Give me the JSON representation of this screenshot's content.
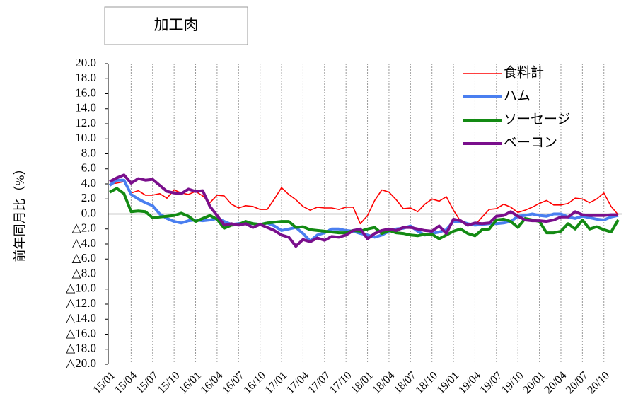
{
  "chart_data": {
    "type": "line",
    "title": "加工肉",
    "y_label": "前年同月比（%）",
    "categories": [
      "15/01",
      null,
      null,
      "15/04",
      null,
      null,
      "15/07",
      null,
      null,
      "15/10",
      null,
      null,
      "16/01",
      null,
      null,
      "16/04",
      null,
      null,
      "16/07",
      null,
      null,
      "16/10",
      null,
      null,
      "17/01",
      null,
      null,
      "17/04",
      null,
      null,
      "17/07",
      null,
      null,
      "17/10",
      null,
      null,
      "18/01",
      null,
      null,
      "18/04",
      null,
      null,
      "18/07",
      null,
      null,
      "18/10",
      null,
      null,
      "19/01",
      null,
      null,
      "19/04",
      null,
      null,
      "19/07",
      null,
      null,
      "19/10",
      null,
      null,
      "20/01",
      null,
      null,
      "20/04",
      null,
      null,
      "20/07",
      null,
      null,
      "20/10",
      null,
      null
    ],
    "series": [
      {
        "name": "食料計",
        "color": "#ff0000",
        "line_width": 1.6,
        "values": [
          4.0,
          4.1,
          4.3,
          2.8,
          3.1,
          2.5,
          2.5,
          2.7,
          2.1,
          3.2,
          2.8,
          2.6,
          3.0,
          2.4,
          1.5,
          2.5,
          2.4,
          1.3,
          0.8,
          1.1,
          1.0,
          0.6,
          0.6,
          2.0,
          3.5,
          2.6,
          1.9,
          1.0,
          0.5,
          0.9,
          0.8,
          0.8,
          0.6,
          0.9,
          0.9,
          -1.3,
          -0.2,
          1.8,
          3.2,
          2.9,
          1.9,
          0.7,
          0.8,
          0.3,
          1.3,
          2.0,
          1.7,
          2.3,
          0.5,
          -1.0,
          -1.3,
          -1.5,
          -0.4,
          0.6,
          0.7,
          1.3,
          0.9,
          0.2,
          0.5,
          0.9,
          1.4,
          1.8,
          1.2,
          1.2,
          1.4,
          2.1,
          2.0,
          1.5,
          2.0,
          2.8,
          1.0,
          -0.1
        ]
      },
      {
        "name": "ハム",
        "color": "#4a7ff0",
        "line_width": 4,
        "values": [
          3.8,
          4.5,
          4.5,
          2.6,
          2.0,
          1.5,
          1.1,
          0.0,
          -0.6,
          -1.0,
          -1.2,
          -0.9,
          -0.8,
          -0.9,
          -0.8,
          -0.6,
          -1.0,
          -1.4,
          -1.3,
          -1.2,
          -1.3,
          -1.4,
          -1.2,
          -1.6,
          -2.2,
          -2.0,
          -1.8,
          -2.6,
          -3.6,
          -2.8,
          -2.5,
          -2.0,
          -2.0,
          -2.2,
          -2.3,
          -2.6,
          -2.8,
          -3.1,
          -2.8,
          -2.3,
          -2.0,
          -1.9,
          -1.6,
          -2.3,
          -2.8,
          -2.6,
          -2.4,
          -2.1,
          -1.0,
          -1.0,
          -1.3,
          -1.5,
          -1.4,
          -1.3,
          -1.3,
          -1.2,
          -1.0,
          -0.3,
          -0.2,
          0.0,
          -0.2,
          -0.3,
          0.0,
          0.0,
          -0.4,
          -0.6,
          -0.3,
          -0.5,
          -0.7,
          -0.8,
          -0.4,
          -0.2
        ]
      },
      {
        "name": "ソーセージ",
        "color": "#138a13",
        "line_width": 4,
        "values": [
          2.9,
          3.4,
          2.7,
          0.3,
          0.4,
          0.3,
          -0.5,
          -0.4,
          -0.3,
          -0.2,
          0.1,
          -0.3,
          -1.0,
          -0.6,
          -0.2,
          -0.7,
          -1.9,
          -1.5,
          -1.4,
          -1.0,
          -1.3,
          -1.4,
          -1.2,
          -1.1,
          -1.0,
          -1.0,
          -1.8,
          -1.7,
          -2.1,
          -2.2,
          -2.3,
          -2.4,
          -2.5,
          -2.5,
          -2.2,
          -2.3,
          -2.0,
          -1.8,
          -2.6,
          -2.2,
          -2.5,
          -2.6,
          -2.8,
          -2.9,
          -2.7,
          -2.7,
          -3.3,
          -2.8,
          -2.3,
          -2.0,
          -2.6,
          -2.9,
          -2.1,
          -2.0,
          -0.8,
          -0.7,
          -1.0,
          -1.8,
          -0.6,
          -0.8,
          -1.0,
          -2.5,
          -2.5,
          -2.3,
          -1.3,
          -2.0,
          -0.8,
          -2.0,
          -1.7,
          -2.1,
          -2.4,
          -0.8
        ]
      },
      {
        "name": "ベーコン",
        "color": "#7a0f8c",
        "line_width": 4,
        "values": [
          4.3,
          4.8,
          5.2,
          4.1,
          4.7,
          4.5,
          4.6,
          3.8,
          3.0,
          2.8,
          2.7,
          3.3,
          3.0,
          3.1,
          1.0,
          -0.2,
          -1.5,
          -1.3,
          -1.5,
          -1.3,
          -1.8,
          -1.4,
          -1.8,
          -2.2,
          -2.8,
          -3.1,
          -4.3,
          -3.4,
          -3.7,
          -3.2,
          -3.5,
          -3.0,
          -3.1,
          -2.8,
          -2.2,
          -2.0,
          -3.3,
          -2.6,
          -2.2,
          -2.0,
          -2.2,
          -1.8,
          -1.8,
          -2.0,
          -2.2,
          -2.3,
          -1.6,
          -2.6,
          -0.7,
          -0.9,
          -1.5,
          -1.2,
          -1.3,
          -1.2,
          -0.3,
          -0.2,
          0.3,
          -0.3,
          -0.8,
          -0.9,
          -0.9,
          -1.0,
          -0.8,
          -0.4,
          -0.4,
          0.3,
          -0.1,
          -0.2,
          -0.2,
          -0.2,
          -0.1,
          -0.1
        ]
      }
    ],
    "ylim": [
      -20,
      20
    ],
    "yticks": [
      {
        "value": 20,
        "label": "20.0"
      },
      {
        "value": 18,
        "label": "18.0"
      },
      {
        "value": 16,
        "label": "16.0"
      },
      {
        "value": 14,
        "label": "14.0"
      },
      {
        "value": 12,
        "label": "12.0"
      },
      {
        "value": 10,
        "label": "10.0"
      },
      {
        "value": 8,
        "label": "8.0"
      },
      {
        "value": 6,
        "label": "6.0"
      },
      {
        "value": 4,
        "label": "4.0"
      },
      {
        "value": 2,
        "label": "2.0"
      },
      {
        "value": 0,
        "label": "0.0"
      },
      {
        "value": -2,
        "label": "△2.0"
      },
      {
        "value": -4,
        "label": "△4.0"
      },
      {
        "value": -6,
        "label": "△6.0"
      },
      {
        "value": -8,
        "label": "△8.0"
      },
      {
        "value": -10,
        "label": "△10.0"
      },
      {
        "value": -12,
        "label": "△12.0"
      },
      {
        "value": -14,
        "label": "△14.0"
      },
      {
        "value": -16,
        "label": "△16.0"
      },
      {
        "value": -18,
        "label": "△18.0"
      },
      {
        "value": -20,
        "label": "△20.0"
      }
    ],
    "negative_tick_color": "#ff0000",
    "x_grid": true,
    "legend": "upper right"
  }
}
